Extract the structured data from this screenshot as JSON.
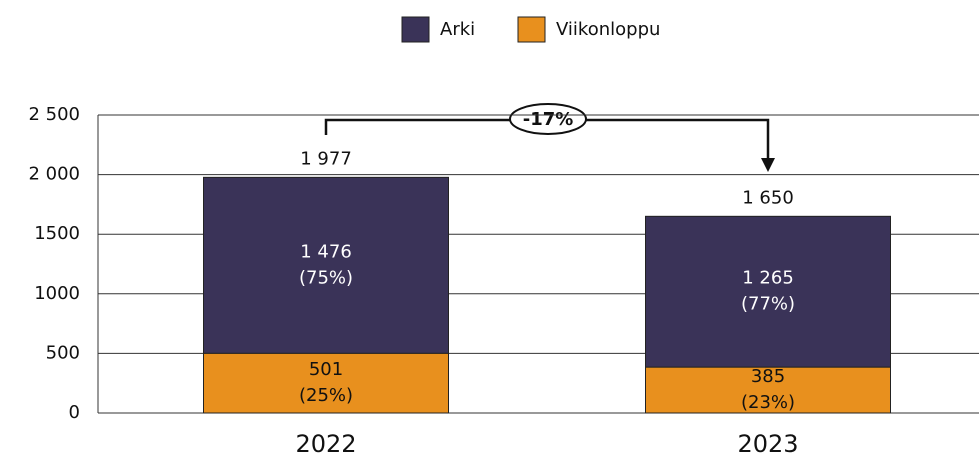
{
  "chart_data": {
    "type": "stacked_bar",
    "categories": [
      "2022",
      "2023"
    ],
    "series": [
      {
        "name": "Arki",
        "color": "#3a3358",
        "values": [
          1476,
          1265
        ],
        "value_labels": [
          "1 476",
          "1 265"
        ],
        "shares": [
          75,
          77
        ],
        "share_labels": [
          "(75%)",
          "(77%)"
        ]
      },
      {
        "name": "Viikonloppu",
        "color": "#e8901e",
        "values": [
          501,
          385
        ],
        "value_labels": [
          "501",
          "385"
        ],
        "shares": [
          25,
          23
        ],
        "share_labels": [
          "(25%)",
          "(23%)"
        ]
      }
    ],
    "totals": [
      1977,
      1650
    ],
    "total_labels": [
      "1 977",
      "1 650"
    ],
    "annotation": "-17%",
    "ylim": [
      0,
      2500
    ],
    "yticks": [
      0,
      500,
      1000,
      1500,
      {
        "value": 2000,
        "label": "2 000"
      },
      {
        "value": 2500,
        "label": "2 500"
      }
    ],
    "grid": true,
    "legend": "top"
  }
}
